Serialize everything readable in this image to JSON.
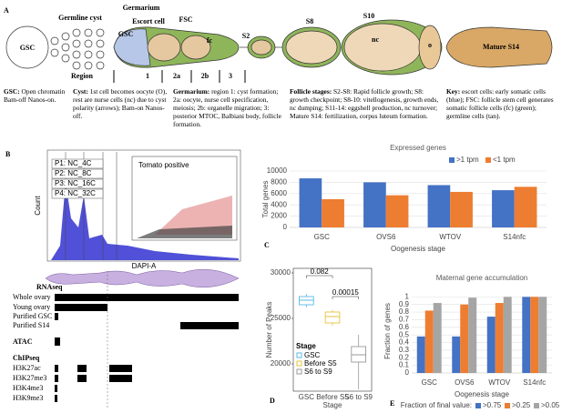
{
  "panel_a": {
    "letter": "A",
    "labels": {
      "gsc": "GSC",
      "germline_cyst": "Germline cyst",
      "germarium": "Germarium",
      "escort_cell": "Escort cell",
      "fsc": "FSC",
      "gsc_small": "GSC",
      "fc": "fc",
      "s2": "S2",
      "s8": "S8",
      "s10": "S10",
      "nc": "nc",
      "o": "o",
      "mature": "Mature S14"
    },
    "region": {
      "label": "Region",
      "items": [
        "1",
        "2a",
        "2b",
        "3"
      ]
    },
    "descriptions": [
      {
        "label": "GSC:",
        "text": "Open chromatin Bam-off Nanos-on."
      },
      {
        "label": "Cyst:",
        "text": "1st cell becomes oocyte (O), rest are nurse cells (nc) due to cyst polarity (arrows); Bam-on Nanos-off."
      },
      {
        "label": "Germarium:",
        "text": "region 1: cyst formation; 2a: oocyte, nurse cell specification, meiosis; 2b: organelle migration; 3: posterior MTOC, Balbiani body, follicle formation."
      },
      {
        "label": "Follicle stages:",
        "text": "S2-S8: Rapid follicle growth; S8: growth checkpoint; S8-10: vitellogenesis, growth ends, nc dumping; S11-14: eggshell production, nc turnover; Mature S14: fertilization, corpus luteum formation."
      },
      {
        "label": "Key:",
        "text": "escort cells: early somatic cells (blue); FSC: follicle stem cell generates somatic follicle cells (fc) (green); germline cells (tan)."
      }
    ]
  },
  "panel_b": {
    "letter": "B",
    "gates": [
      "P1: NC_4C",
      "P2: NC_8C",
      "P3: NC_16C",
      "P4: NC_32C"
    ],
    "inset_label": "Tomato positive",
    "y_label": "Count",
    "x_label": "DAPI-A",
    "tracks": [
      {
        "group": "RNAseq",
        "items": [
          "Whole ovary",
          "Young ovary",
          "Purified GSC",
          "Purified S14"
        ]
      },
      {
        "group": "ATAC",
        "items": []
      },
      {
        "group": "ChIPseq",
        "items": [
          "H3K27ac",
          "H3K27me3",
          "H3K4me3",
          "H3K9me3"
        ]
      }
    ]
  },
  "chart_data": [
    {
      "type": "bar",
      "letter": "C",
      "title": "Expressed genes",
      "y_label": "Total genes",
      "x_label": "Oogenesis stage",
      "categories": [
        "GSC",
        "OVS6",
        "WTOV",
        "S14nfc"
      ],
      "series": [
        {
          "name": ">1 tpm",
          "color": "#4472c4",
          "values": [
            8700,
            8000,
            7500,
            6600
          ]
        },
        {
          "name": "<1 tpm",
          "color": "#ed7d31",
          "values": [
            5000,
            5700,
            6300,
            7200
          ]
        }
      ],
      "ylim": [
        0,
        10000
      ],
      "yticks": [
        0,
        2000,
        4000,
        6000,
        8000,
        10000
      ],
      "grid": true,
      "legend": "top"
    },
    {
      "type": "box",
      "letter": "D",
      "y_label": "Number of Peaks",
      "x_label": "Stage",
      "categories": [
        "GSC",
        "Before S5",
        "S6 to S9"
      ],
      "legend_title": "Stage",
      "series": [
        {
          "name": "GSC",
          "color": "#5bb8e6",
          "min": 26200,
          "q1": 26500,
          "median": 27000,
          "q3": 27400,
          "max": 27700
        },
        {
          "name": "Before S5",
          "color": "#e6c33b",
          "min": 24200,
          "q1": 24500,
          "median": 25200,
          "q3": 25700,
          "max": 25900
        },
        {
          "name": "S6 to S9",
          "color": "#9a9a9a",
          "min": 17200,
          "q1": 20200,
          "median": 21000,
          "q3": 21900,
          "max": 23200
        }
      ],
      "annotations": [
        "0.082",
        "0.00015"
      ],
      "ylim": [
        17000,
        30500
      ],
      "yticks": [
        20000,
        25000,
        30000
      ],
      "grid": false
    },
    {
      "type": "bar",
      "letter": "E",
      "title": "Maternal gene accumulation",
      "y_label": "Fraction of genes",
      "x_label": "Oogenesis stage",
      "categories": [
        "GSC",
        "OVS6",
        "WTOV",
        "S14nfc"
      ],
      "legend_title": "Fraction of final value:",
      "series": [
        {
          "name": ">0.75",
          "color": "#4472c4",
          "values": [
            0.48,
            0.48,
            0.74,
            1
          ]
        },
        {
          "name": ">0.25",
          "color": "#ed7d31",
          "values": [
            0.82,
            0.9,
            0.92,
            1
          ]
        },
        {
          "name": ">0.05",
          "color": "#a5a5a5",
          "values": [
            0.92,
            0.99,
            1,
            1
          ]
        }
      ],
      "ylim": [
        0,
        1.1
      ],
      "yticks": [
        0,
        0.1,
        0.2,
        0.3,
        0.4,
        0.5,
        0.6,
        0.7,
        0.8,
        0.9,
        1
      ],
      "grid": true,
      "legend": "bottom"
    }
  ]
}
